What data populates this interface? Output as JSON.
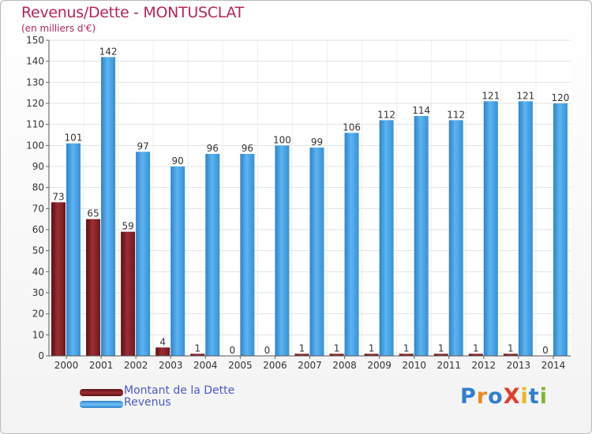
{
  "title": "Revenus/Dette - MONTUSCLAT",
  "subtitle": "(en milliers d'€)",
  "colors": {
    "dette": "#7a1c1f",
    "revenus": "#3d9ae0",
    "title": "#b5245c",
    "legend_text": "#4b5ac8"
  },
  "legend": {
    "dette": "Montant de la Dette",
    "revenus": "Revenus"
  },
  "logo": {
    "text": "ProXiti",
    "letter_colors": [
      "#2f7fd0",
      "#f08a1c",
      "#2f7fd0",
      "#e43d2a",
      "#f0b51c",
      "#2f7fd0",
      "#7ab82f"
    ]
  },
  "chart_data": {
    "type": "bar",
    "title": "Revenus/Dette - MONTUSCLAT",
    "subtitle": "(en milliers d'€)",
    "categories": [
      "2000",
      "2001",
      "2002",
      "2003",
      "2004",
      "2005",
      "2006",
      "2007",
      "2008",
      "2009",
      "2010",
      "2011",
      "2012",
      "2013",
      "2014"
    ],
    "series": [
      {
        "name": "Montant de la Dette",
        "values": [
          73,
          65,
          59,
          4,
          1,
          0,
          0,
          1,
          1,
          1,
          1,
          1,
          1,
          1,
          0
        ]
      },
      {
        "name": "Revenus",
        "values": [
          101,
          142,
          97,
          90,
          96,
          96,
          100,
          99,
          106,
          112,
          114,
          112,
          121,
          121,
          120
        ]
      }
    ],
    "ylim": [
      0,
      150
    ],
    "yticks": [
      0,
      10,
      20,
      30,
      40,
      50,
      60,
      70,
      80,
      90,
      100,
      110,
      120,
      130,
      140,
      150
    ],
    "grid": true,
    "legend_position": "bottom-left"
  }
}
